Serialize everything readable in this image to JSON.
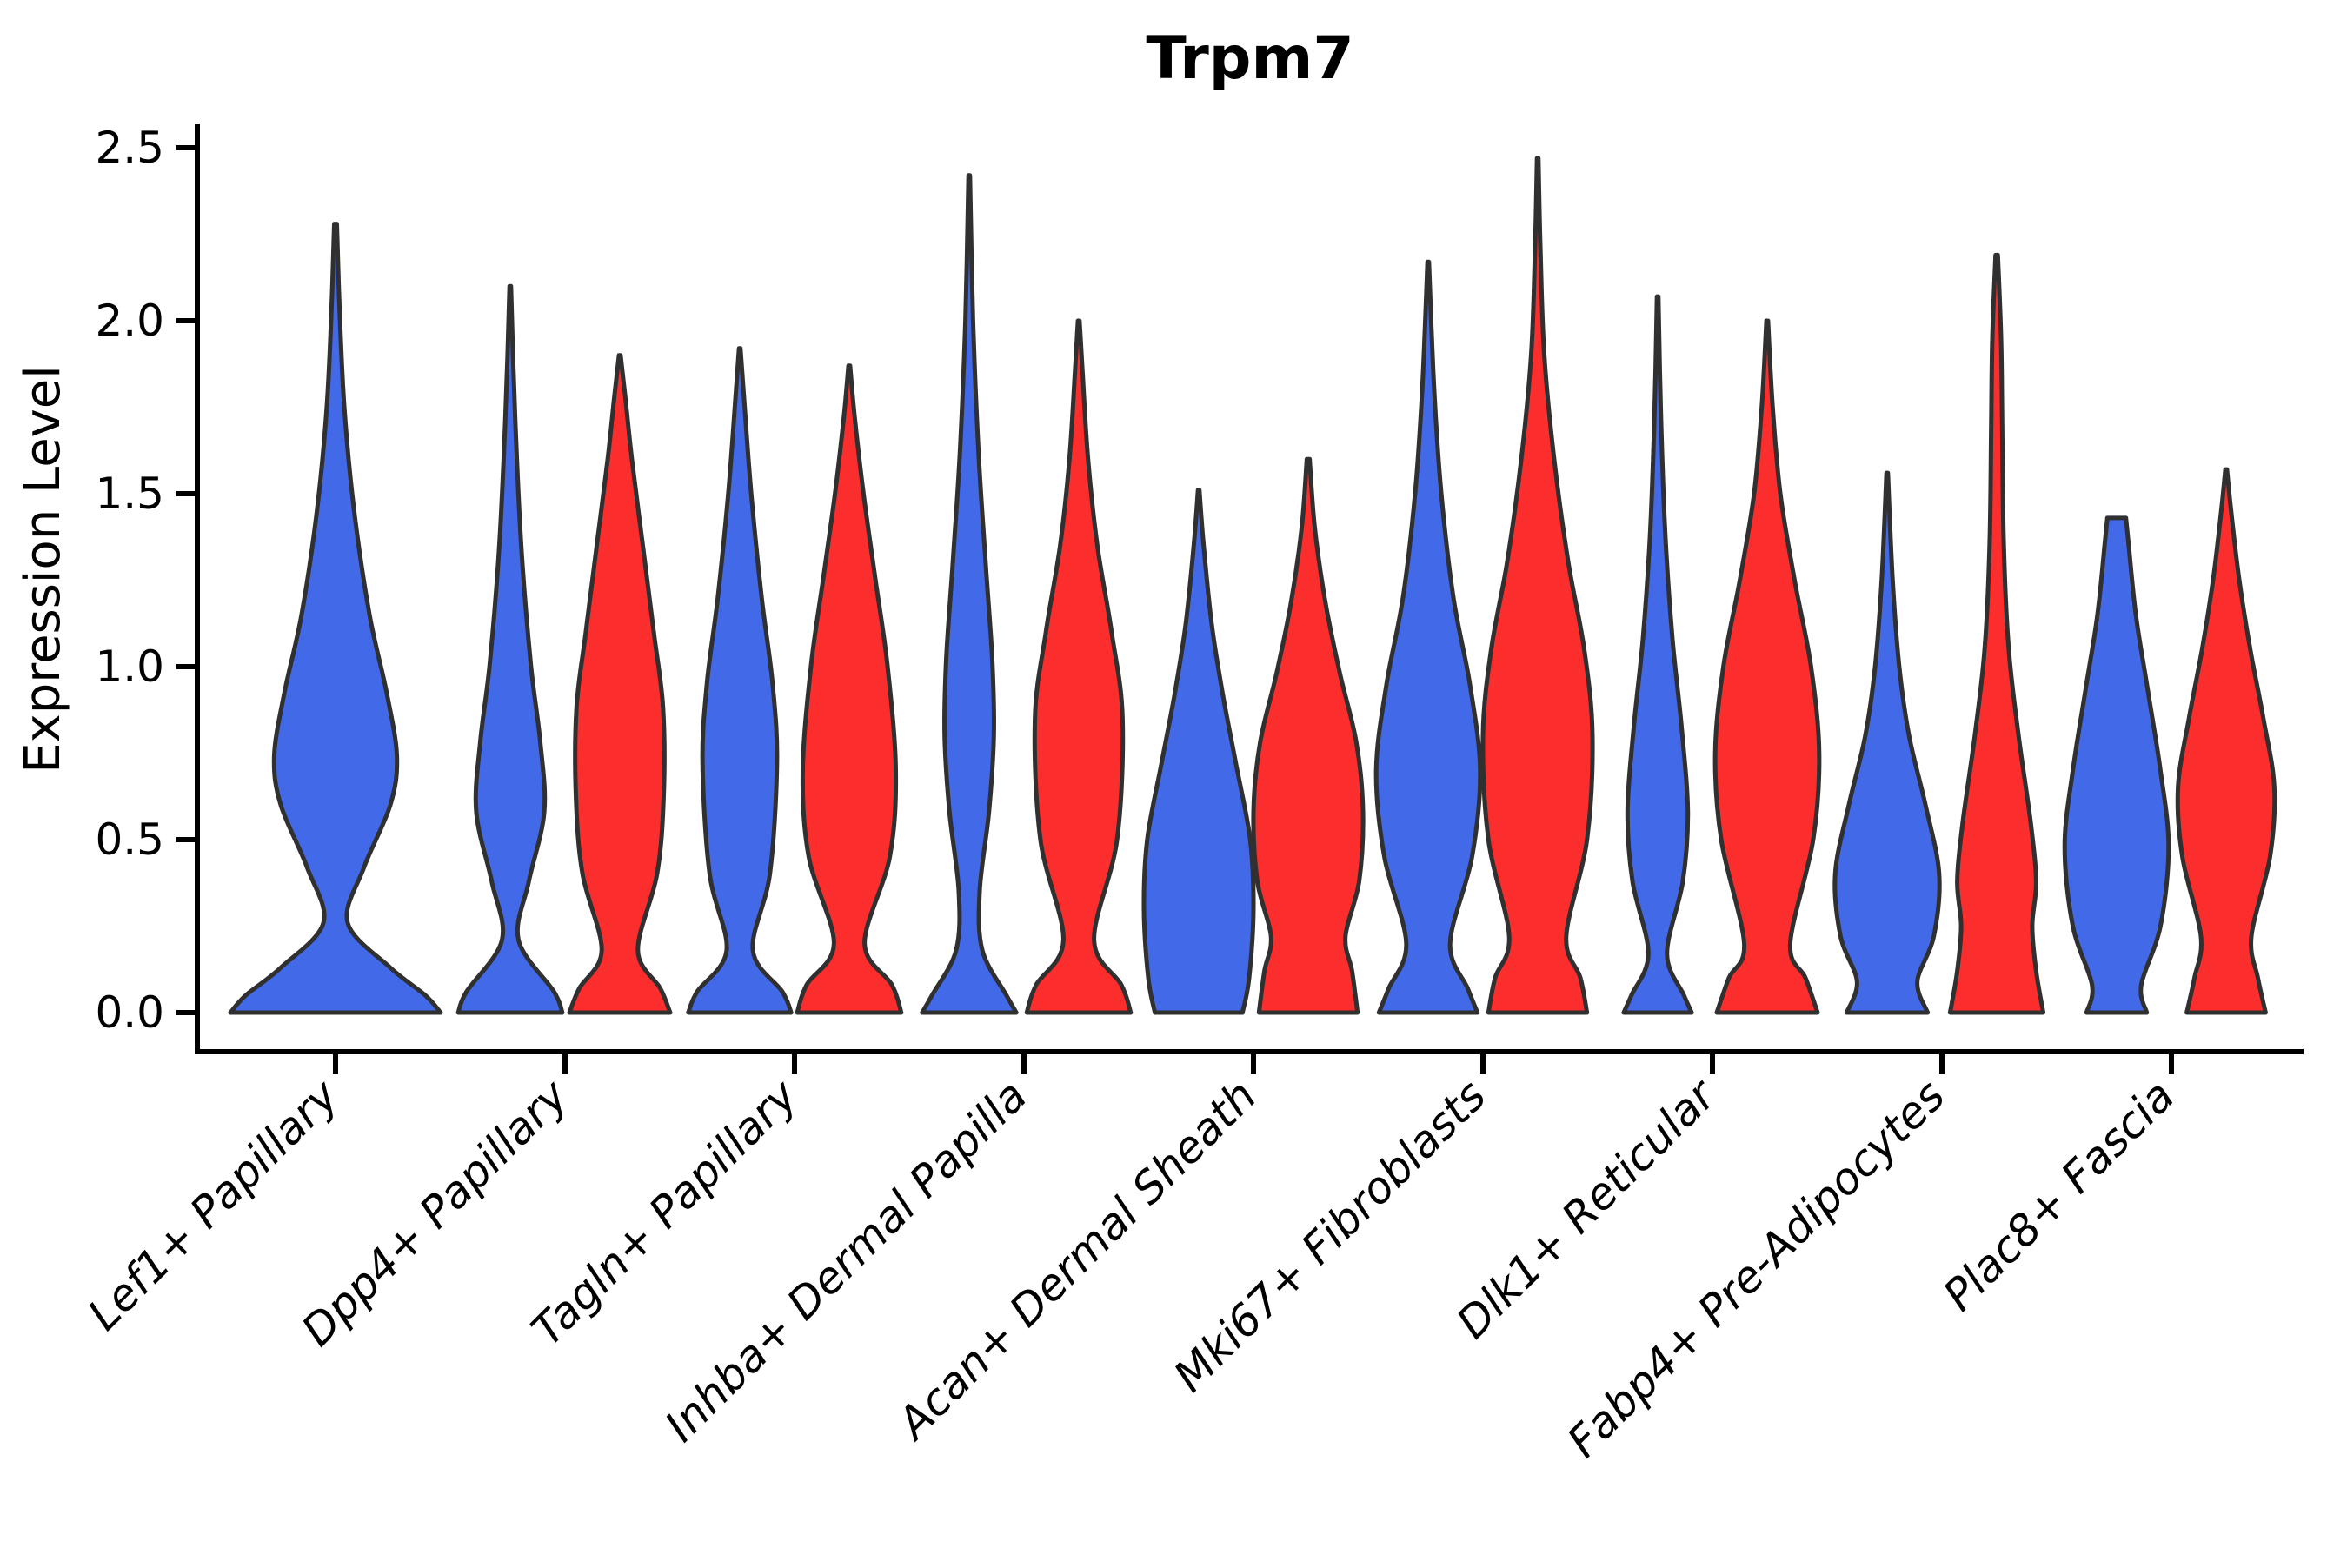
{
  "chart_data": {
    "type": "violin",
    "title": "Trpm7",
    "ylabel": "Expression Level",
    "xlabel": "",
    "ylim": [
      -0.15,
      2.57
    ],
    "yticks": [
      0.0,
      0.5,
      1.0,
      1.5,
      2.0,
      2.5
    ],
    "ytick_labels": [
      "0.0",
      "0.5",
      "1.0",
      "1.5",
      "2.0",
      "2.5"
    ],
    "grid": false,
    "legend": "none",
    "categories": [
      "Lef1+ Papillary",
      "Dpp4+ Papillary",
      "Tagln+ Papillary",
      "Inhba+ Dermal Papilla",
      "Acan+ Dermal Sheath",
      "Mki67+ Fibroblasts",
      "Dlk1+ Reticular",
      "Fabp4+ Pre-Adipocytes",
      "Plac8+ Fascia"
    ],
    "series_colors": {
      "blue": "#4169E8",
      "red": "#FB2D2D"
    },
    "outline_color": "#303030",
    "violins": [
      {
        "category_index": 0,
        "category": "Lef1+ Papillary",
        "series": "blue",
        "placement": "center",
        "max_expression": 2.28,
        "profile": [
          [
            0,
            0.96
          ],
          [
            0.05,
            0.82
          ],
          [
            0.13,
            0.5
          ],
          [
            0.26,
            0.11
          ],
          [
            0.42,
            0.26
          ],
          [
            0.6,
            0.5
          ],
          [
            0.74,
            0.56
          ],
          [
            0.92,
            0.47
          ],
          [
            1.15,
            0.31
          ],
          [
            1.45,
            0.17
          ],
          [
            1.75,
            0.08
          ],
          [
            2.05,
            0.035
          ],
          [
            2.28,
            0.012
          ]
        ]
      },
      {
        "category_index": 1,
        "category": "Dpp4+ Papillary",
        "series": "blue",
        "placement": "left",
        "max_expression": 2.1,
        "profile": [
          [
            0,
            0.95
          ],
          [
            0.06,
            0.8
          ],
          [
            0.21,
            0.15
          ],
          [
            0.38,
            0.34
          ],
          [
            0.58,
            0.62
          ],
          [
            0.78,
            0.55
          ],
          [
            1.0,
            0.38
          ],
          [
            1.3,
            0.22
          ],
          [
            1.6,
            0.12
          ],
          [
            1.9,
            0.05
          ],
          [
            2.1,
            0.012
          ]
        ]
      },
      {
        "category_index": 1,
        "category": "Dpp4+ Papillary",
        "series": "red",
        "placement": "right",
        "max_expression": 1.9,
        "profile": [
          [
            0,
            0.92
          ],
          [
            0.07,
            0.74
          ],
          [
            0.18,
            0.33
          ],
          [
            0.4,
            0.68
          ],
          [
            0.62,
            0.8
          ],
          [
            0.88,
            0.79
          ],
          [
            1.1,
            0.62
          ],
          [
            1.35,
            0.42
          ],
          [
            1.6,
            0.22
          ],
          [
            1.78,
            0.1
          ],
          [
            1.9,
            0.015
          ]
        ]
      },
      {
        "category_index": 2,
        "category": "Tagln+ Papillary",
        "series": "blue",
        "placement": "left",
        "max_expression": 1.92,
        "profile": [
          [
            0,
            0.94
          ],
          [
            0.06,
            0.78
          ],
          [
            0.18,
            0.24
          ],
          [
            0.4,
            0.55
          ],
          [
            0.72,
            0.68
          ],
          [
            0.95,
            0.6
          ],
          [
            1.2,
            0.4
          ],
          [
            1.5,
            0.21
          ],
          [
            1.75,
            0.09
          ],
          [
            1.92,
            0.012
          ]
        ]
      },
      {
        "category_index": 2,
        "category": "Tagln+ Papillary",
        "series": "red",
        "placement": "right",
        "max_expression": 1.87,
        "profile": [
          [
            0,
            0.95
          ],
          [
            0.08,
            0.78
          ],
          [
            0.2,
            0.28
          ],
          [
            0.45,
            0.74
          ],
          [
            0.7,
            0.85
          ],
          [
            1.0,
            0.7
          ],
          [
            1.25,
            0.48
          ],
          [
            1.5,
            0.26
          ],
          [
            1.72,
            0.1
          ],
          [
            1.87,
            0.015
          ]
        ]
      },
      {
        "category_index": 3,
        "category": "Inhba+ Dermal Papilla",
        "series": "blue",
        "placement": "left",
        "max_expression": 2.42,
        "profile": [
          [
            0,
            0.86
          ],
          [
            0.05,
            0.68
          ],
          [
            0.18,
            0.24
          ],
          [
            0.35,
            0.19
          ],
          [
            0.58,
            0.36
          ],
          [
            0.8,
            0.45
          ],
          [
            1.02,
            0.42
          ],
          [
            1.3,
            0.3
          ],
          [
            1.62,
            0.17
          ],
          [
            2.0,
            0.07
          ],
          [
            2.42,
            0.012
          ]
        ]
      },
      {
        "category_index": 3,
        "category": "Inhba+ Dermal Papilla",
        "series": "red",
        "placement": "right",
        "max_expression": 2.0,
        "profile": [
          [
            0,
            0.95
          ],
          [
            0.08,
            0.78
          ],
          [
            0.21,
            0.28
          ],
          [
            0.5,
            0.7
          ],
          [
            0.85,
            0.8
          ],
          [
            1.1,
            0.6
          ],
          [
            1.35,
            0.34
          ],
          [
            1.6,
            0.17
          ],
          [
            1.85,
            0.07
          ],
          [
            2.0,
            0.015
          ]
        ]
      },
      {
        "category_index": 4,
        "category": "Acan+ Dermal Sheath",
        "series": "blue",
        "placement": "left",
        "max_expression": 1.51,
        "profile": [
          [
            0,
            0.8
          ],
          [
            0.1,
            0.92
          ],
          [
            0.3,
            1.0
          ],
          [
            0.5,
            0.94
          ],
          [
            0.72,
            0.68
          ],
          [
            0.92,
            0.44
          ],
          [
            1.12,
            0.24
          ],
          [
            1.35,
            0.09
          ],
          [
            1.51,
            0.012
          ]
        ]
      },
      {
        "category_index": 4,
        "category": "Acan+ Dermal Sheath",
        "series": "red",
        "placement": "right",
        "max_expression": 1.6,
        "profile": [
          [
            0,
            0.9
          ],
          [
            0.12,
            0.8
          ],
          [
            0.22,
            0.68
          ],
          [
            0.38,
            0.93
          ],
          [
            0.58,
            1.0
          ],
          [
            0.78,
            0.88
          ],
          [
            0.98,
            0.58
          ],
          [
            1.18,
            0.32
          ],
          [
            1.4,
            0.12
          ],
          [
            1.6,
            0.025
          ]
        ]
      },
      {
        "category_index": 5,
        "category": "Mki67+ Fibroblasts",
        "series": "blue",
        "placement": "left",
        "max_expression": 2.17,
        "profile": [
          [
            0,
            0.9
          ],
          [
            0.07,
            0.72
          ],
          [
            0.2,
            0.4
          ],
          [
            0.45,
            0.8
          ],
          [
            0.7,
            0.95
          ],
          [
            0.95,
            0.76
          ],
          [
            1.2,
            0.46
          ],
          [
            1.5,
            0.24
          ],
          [
            1.8,
            0.11
          ],
          [
            2.17,
            0.012
          ]
        ]
      },
      {
        "category_index": 5,
        "category": "Mki67+ Fibroblasts",
        "series": "red",
        "placement": "right",
        "max_expression": 2.47,
        "profile": [
          [
            0,
            0.9
          ],
          [
            0.1,
            0.78
          ],
          [
            0.22,
            0.52
          ],
          [
            0.5,
            0.9
          ],
          [
            0.8,
            1.0
          ],
          [
            1.05,
            0.85
          ],
          [
            1.3,
            0.56
          ],
          [
            1.6,
            0.3
          ],
          [
            1.9,
            0.12
          ],
          [
            2.2,
            0.05
          ],
          [
            2.47,
            0.012
          ]
        ]
      },
      {
        "category_index": 6,
        "category": "Dlk1+ Reticular",
        "series": "blue",
        "placement": "left",
        "max_expression": 2.07,
        "profile": [
          [
            0,
            0.62
          ],
          [
            0.05,
            0.48
          ],
          [
            0.17,
            0.17
          ],
          [
            0.38,
            0.46
          ],
          [
            0.58,
            0.55
          ],
          [
            0.82,
            0.44
          ],
          [
            1.08,
            0.27
          ],
          [
            1.38,
            0.14
          ],
          [
            1.72,
            0.06
          ],
          [
            2.07,
            0.012
          ]
        ]
      },
      {
        "category_index": 6,
        "category": "Dlk1+ Reticular",
        "series": "red",
        "placement": "right",
        "max_expression": 2.0,
        "profile": [
          [
            0,
            0.92
          ],
          [
            0.1,
            0.7
          ],
          [
            0.2,
            0.42
          ],
          [
            0.5,
            0.84
          ],
          [
            0.75,
            0.95
          ],
          [
            1.0,
            0.8
          ],
          [
            1.25,
            0.5
          ],
          [
            1.5,
            0.24
          ],
          [
            1.75,
            0.1
          ],
          [
            2.0,
            0.015
          ]
        ]
      },
      {
        "category_index": 7,
        "category": "Fabp4+ Pre-Adipocytes",
        "series": "blue",
        "placement": "left",
        "max_expression": 1.56,
        "profile": [
          [
            0,
            0.74
          ],
          [
            0.09,
            0.55
          ],
          [
            0.22,
            0.85
          ],
          [
            0.4,
            0.95
          ],
          [
            0.6,
            0.7
          ],
          [
            0.8,
            0.4
          ],
          [
            1.0,
            0.22
          ],
          [
            1.25,
            0.1
          ],
          [
            1.56,
            0.012
          ]
        ]
      },
      {
        "category_index": 7,
        "category": "Fabp4+ Pre-Adipocytes",
        "series": "red",
        "placement": "right",
        "max_expression": 2.19,
        "profile": [
          [
            0,
            0.85
          ],
          [
            0.12,
            0.72
          ],
          [
            0.25,
            0.65
          ],
          [
            0.38,
            0.72
          ],
          [
            0.55,
            0.62
          ],
          [
            0.8,
            0.4
          ],
          [
            1.05,
            0.22
          ],
          [
            1.35,
            0.13
          ],
          [
            1.7,
            0.1
          ],
          [
            1.95,
            0.08
          ],
          [
            2.19,
            0.02
          ]
        ]
      },
      {
        "category_index": 8,
        "category": "Plac8+ Fascia",
        "series": "blue",
        "placement": "left",
        "max_expression": 1.43,
        "profile": [
          [
            0,
            0.55
          ],
          [
            0.08,
            0.45
          ],
          [
            0.25,
            0.8
          ],
          [
            0.48,
            0.95
          ],
          [
            0.7,
            0.8
          ],
          [
            0.95,
            0.55
          ],
          [
            1.15,
            0.35
          ],
          [
            1.35,
            0.22
          ],
          [
            1.43,
            0.17
          ]
        ]
      },
      {
        "category_index": 8,
        "category": "Plac8+ Fascia",
        "series": "red",
        "placement": "right",
        "max_expression": 1.57,
        "profile": [
          [
            0,
            0.72
          ],
          [
            0.1,
            0.58
          ],
          [
            0.22,
            0.46
          ],
          [
            0.45,
            0.8
          ],
          [
            0.65,
            0.88
          ],
          [
            0.85,
            0.68
          ],
          [
            1.05,
            0.44
          ],
          [
            1.25,
            0.24
          ],
          [
            1.45,
            0.09
          ],
          [
            1.57,
            0.015
          ]
        ]
      }
    ]
  }
}
